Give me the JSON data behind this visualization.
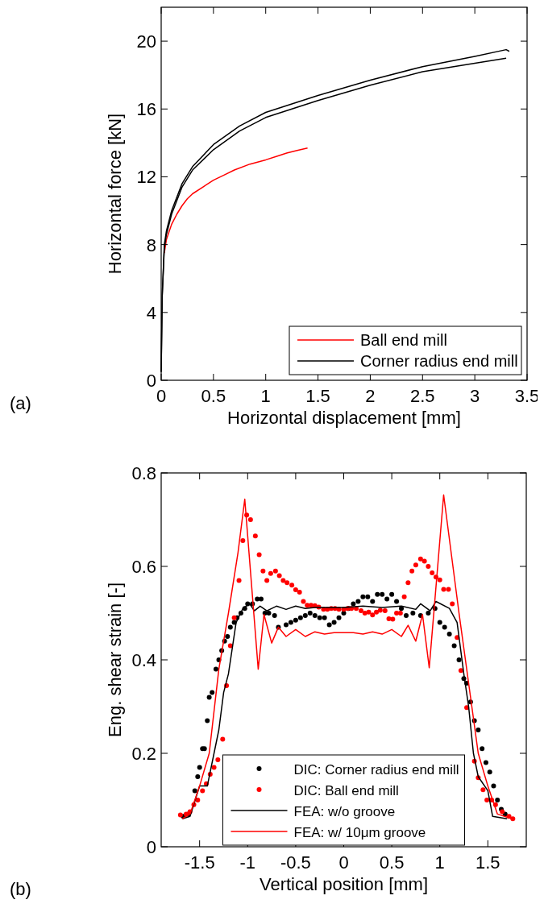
{
  "chart_data": [
    {
      "type": "line",
      "xlabel": "Horizontal displacement [mm]",
      "ylabel": "Horizontal force [kN]",
      "annotations": [
        "(a)"
      ],
      "xlim": [
        0,
        3.5
      ],
      "xticks": [
        0,
        0.5,
        1,
        1.5,
        2,
        2.5,
        3,
        3.5
      ],
      "ylim": [
        0,
        22
      ],
      "yticks": [
        0,
        4,
        8,
        12,
        16,
        20
      ],
      "legend": "bottom right",
      "grid": false,
      "series": [
        {
          "name": "Ball end mill",
          "color": "#ff0000",
          "x": [
            0.03,
            0.05,
            0.1,
            0.15,
            0.2,
            0.25,
            0.3,
            0.4,
            0.5,
            0.6,
            0.7,
            0.85,
            1.0,
            1.1,
            1.2,
            1.3,
            1.4
          ],
          "values": [
            7.5,
            8.3,
            9.2,
            9.8,
            10.3,
            10.7,
            11.0,
            11.4,
            11.8,
            12.1,
            12.4,
            12.75,
            13.0,
            13.2,
            13.4,
            13.55,
            13.7
          ]
        },
        {
          "name": "Corner radius end mill",
          "color": "#000000",
          "x": [
            0,
            0.01,
            0.03,
            0.05,
            0.1,
            0.2,
            0.3,
            0.5,
            0.75,
            1.0,
            1.5,
            2.0,
            2.5,
            3.0,
            3.3,
            3.33
          ],
          "values": [
            0.5,
            5,
            8,
            8.8,
            10,
            11.6,
            12.6,
            13.9,
            15,
            15.8,
            16.8,
            17.7,
            18.5,
            19.1,
            19.5,
            19.4
          ]
        },
        {
          "color": "#000000",
          "x": [
            0,
            0.01,
            0.03,
            0.05,
            0.1,
            0.2,
            0.3,
            0.5,
            0.75,
            1.0,
            1.5,
            2.0,
            2.5,
            3.0,
            3.3
          ],
          "values": [
            0.5,
            5,
            7.8,
            8.6,
            9.8,
            11.4,
            12.4,
            13.6,
            14.7,
            15.5,
            16.5,
            17.4,
            18.2,
            18.7,
            19.0
          ]
        }
      ]
    },
    {
      "type": "line",
      "xlabel": "Vertical position [mm]",
      "ylabel": "Eng. shear strain [-]",
      "annotations": [
        "(b)"
      ],
      "xlim": [
        -1.9,
        1.9
      ],
      "xticks": [
        -1.5,
        -1,
        -0.5,
        0,
        0.5,
        1,
        1.5
      ],
      "ylim": [
        0,
        0.8
      ],
      "yticks": [
        0,
        0.2,
        0.4,
        0.6,
        0.8
      ],
      "legend": "bottom",
      "grid": false,
      "series": [
        {
          "name": "DIC: Corner radius end mill",
          "type": "scatter",
          "marker": "circle",
          "color": "#000000",
          "x": [
            -1.67,
            -1.62,
            -1.55,
            -1.52,
            -1.5,
            -1.47,
            -1.45,
            -1.42,
            -1.4,
            -1.37,
            -1.33,
            -1.3,
            -1.27,
            -1.24,
            -1.21,
            -1.18,
            -1.14,
            -1.11,
            -1.07,
            -1.03,
            -1.0,
            -0.95,
            -0.9,
            -0.86,
            -0.82,
            -0.78,
            -0.72,
            -0.68,
            -0.6,
            -0.55,
            -0.5,
            -0.45,
            -0.4,
            -0.35,
            -0.3,
            -0.25,
            -0.2,
            -0.15,
            -0.1,
            -0.05,
            0,
            0.05,
            0.1,
            0.15,
            0.2,
            0.25,
            0.3,
            0.35,
            0.4,
            0.45,
            0.5,
            0.55,
            0.6,
            0.65,
            0.72,
            0.8,
            0.88,
            0.95,
            1.0,
            1.05,
            1.1,
            1.15,
            1.2,
            1.25,
            1.28,
            1.32,
            1.36,
            1.4,
            1.44,
            1.48,
            1.52,
            1.56,
            1.6,
            1.64,
            1.68
          ],
          "values": [
            0.065,
            0.07,
            0.12,
            0.15,
            0.17,
            0.21,
            0.21,
            0.27,
            0.32,
            0.33,
            0.38,
            0.4,
            0.42,
            0.44,
            0.45,
            0.47,
            0.48,
            0.49,
            0.5,
            0.51,
            0.52,
            0.52,
            0.53,
            0.53,
            0.5,
            0.5,
            0.495,
            0.47,
            0.475,
            0.48,
            0.485,
            0.49,
            0.495,
            0.5,
            0.495,
            0.49,
            0.49,
            0.475,
            0.48,
            0.49,
            0.5,
            0.51,
            0.52,
            0.525,
            0.535,
            0.535,
            0.525,
            0.54,
            0.54,
            0.53,
            0.54,
            0.525,
            0.51,
            0.495,
            0.5,
            0.495,
            0.5,
            0.51,
            0.48,
            0.47,
            0.455,
            0.43,
            0.4,
            0.36,
            0.35,
            0.31,
            0.27,
            0.25,
            0.21,
            0.18,
            0.16,
            0.13,
            0.1,
            0.08,
            0.07
          ]
        },
        {
          "name": "DIC: Ball end mill",
          "type": "scatter",
          "marker": "circle",
          "color": "#ff0000",
          "x": [
            -1.7,
            -1.64,
            -1.6,
            -1.56,
            -1.52,
            -1.47,
            -1.43,
            -1.39,
            -1.35,
            -1.31,
            -1.26,
            -1.22,
            -1.18,
            -1.14,
            -1.09,
            -1.05,
            -1.01,
            -0.97,
            -0.92,
            -0.88,
            -0.84,
            -0.8,
            -0.76,
            -0.71,
            -0.67,
            -0.63,
            -0.59,
            -0.54,
            -0.5,
            -0.46,
            -0.42,
            -0.38,
            -0.34,
            -0.3,
            -0.26,
            -0.21,
            -0.17,
            -0.13,
            -0.09,
            -0.05,
            0,
            0.04,
            0.08,
            0.13,
            0.18,
            0.22,
            0.26,
            0.3,
            0.34,
            0.38,
            0.43,
            0.47,
            0.51,
            0.55,
            0.59,
            0.63,
            0.67,
            0.71,
            0.75,
            0.8,
            0.84,
            0.88,
            0.92,
            0.96,
            1.0,
            1.04,
            1.09,
            1.13,
            1.18,
            1.22,
            1.28,
            1.36,
            1.4,
            1.45,
            1.49,
            1.54,
            1.58,
            1.65,
            1.72,
            1.76
          ],
          "values": [
            0.068,
            0.07,
            0.075,
            0.09,
            0.1,
            0.12,
            0.135,
            0.155,
            0.17,
            0.186,
            0.23,
            0.345,
            0.43,
            0.49,
            0.57,
            0.655,
            0.71,
            0.7,
            0.665,
            0.625,
            0.59,
            0.57,
            0.585,
            0.59,
            0.58,
            0.57,
            0.565,
            0.56,
            0.55,
            0.545,
            0.525,
            0.517,
            0.517,
            0.516,
            0.513,
            0.508,
            0.508,
            0.51,
            0.51,
            0.508,
            0.508,
            0.51,
            0.51,
            0.51,
            0.505,
            0.5,
            0.502,
            0.496,
            0.502,
            0.506,
            0.505,
            0.488,
            0.487,
            0.5,
            0.5,
            0.535,
            0.565,
            0.59,
            0.603,
            0.616,
            0.611,
            0.6,
            0.586,
            0.577,
            0.571,
            0.551,
            0.551,
            0.52,
            0.448,
            0.377,
            0.298,
            0.183,
            0.148,
            0.122,
            0.1,
            0.1,
            0.09,
            0.075,
            0.065,
            0.06
          ]
        },
        {
          "name": "FEA: w/o groove",
          "color": "#000000",
          "x": [
            -1.68,
            -1.6,
            -1.5,
            -1.42,
            -1.35,
            -1.3,
            -1.25,
            -1.2,
            -1.12,
            -1.05,
            -0.98,
            -0.93,
            -0.87,
            -0.8,
            -0.7,
            -0.6,
            -0.5,
            -0.4,
            -0.3,
            -0.2,
            0,
            0.2,
            0.4,
            0.6,
            0.75,
            0.8,
            0.9,
            0.96,
            1.1,
            1.18,
            1.25,
            1.3,
            1.35,
            1.4,
            1.5,
            1.55,
            1.7
          ],
          "values": [
            0.06,
            0.065,
            0.13,
            0.13,
            0.2,
            0.25,
            0.33,
            0.37,
            0.48,
            0.51,
            0.52,
            0.505,
            0.515,
            0.505,
            0.515,
            0.508,
            0.515,
            0.51,
            0.512,
            0.512,
            0.512,
            0.515,
            0.512,
            0.515,
            0.508,
            0.52,
            0.505,
            0.525,
            0.51,
            0.48,
            0.37,
            0.3,
            0.2,
            0.15,
            0.12,
            0.065,
            0.06
          ]
        },
        {
          "name": "FEA: w/ 10μm groove",
          "color": "#ff0000",
          "x": [
            -1.68,
            -1.6,
            -1.5,
            -1.4,
            -1.3,
            -1.2,
            -1.1,
            -1.03,
            -0.89,
            -0.83,
            -0.75,
            -0.68,
            -0.6,
            -0.5,
            -0.4,
            -0.3,
            -0.2,
            -0.1,
            0,
            0.1,
            0.2,
            0.3,
            0.4,
            0.5,
            0.6,
            0.67,
            0.75,
            0.82,
            0.89,
            1.04,
            1.2,
            1.3,
            1.4,
            1.5,
            1.6,
            1.75
          ],
          "values": [
            0.06,
            0.07,
            0.13,
            0.2,
            0.38,
            0.5,
            0.63,
            0.744,
            0.38,
            0.497,
            0.436,
            0.47,
            0.45,
            0.465,
            0.45,
            0.46,
            0.455,
            0.458,
            0.458,
            0.458,
            0.455,
            0.46,
            0.455,
            0.465,
            0.45,
            0.474,
            0.44,
            0.497,
            0.383,
            0.753,
            0.5,
            0.35,
            0.2,
            0.13,
            0.07,
            0.06
          ]
        }
      ]
    }
  ]
}
